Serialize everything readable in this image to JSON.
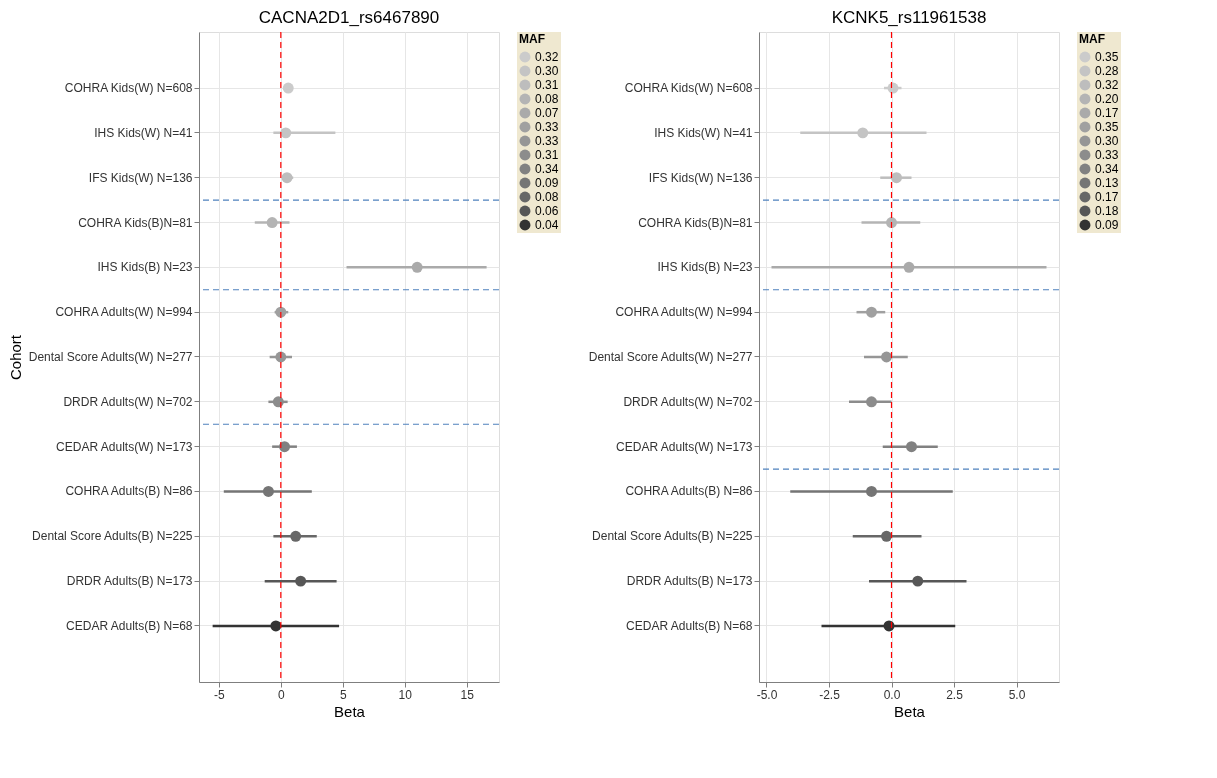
{
  "chart_data": [
    {
      "type": "scatter",
      "orientation": "horizontal",
      "title": "CACNA2D1_rs6467890",
      "xlabel": "Beta",
      "ylabel": "Cohort",
      "legend_title": "MAF",
      "legend": "right",
      "grid": true,
      "marker": "circle",
      "categories": [
        "COHRA Kids(W) N=608",
        "IHS Kids(W) N=41",
        "IFS Kids(W) N=136",
        "COHRA Kids(B)N=81",
        "IHS Kids(B) N=23",
        "COHRA Adults(W) N=994",
        "Dental Score Adults(W) N=277",
        "DRDR Adults(W) N=702",
        "CEDAR Adults(W) N=173",
        "COHRA Adults(B) N=86",
        "Dental Score Adults(B) N=225",
        "DRDR Adults(B) N=173",
        "CEDAR Adults(B) N=68"
      ],
      "xlim": [
        -6.6,
        17.6
      ],
      "xticks": [
        -5,
        0,
        5,
        10,
        15
      ],
      "series": [
        {
          "name": "0.32",
          "color": "#cbcbcb",
          "values": [
            0.6,
            null,
            null,
            null,
            null,
            null,
            null,
            null,
            null,
            null,
            null,
            null,
            null
          ],
          "errors": [
            [
              0.4,
              0.8
            ],
            null,
            null,
            null,
            null,
            null,
            null,
            null,
            null,
            null,
            null,
            null,
            null
          ]
        },
        {
          "name": "0.30",
          "color": "#c4c4c4",
          "values": [
            null,
            0.4,
            null,
            null,
            null,
            null,
            null,
            null,
            null,
            null,
            null,
            null,
            null
          ],
          "errors": [
            null,
            [
              -0.6,
              4.4
            ],
            null,
            null,
            null,
            null,
            null,
            null,
            null,
            null,
            null,
            null,
            null
          ]
        },
        {
          "name": "0.31",
          "color": "#bdbdbd",
          "values": [
            null,
            null,
            0.5,
            null,
            null,
            null,
            null,
            null,
            null,
            null,
            null,
            null,
            null
          ],
          "errors": [
            null,
            null,
            [
              0.15,
              1.0
            ],
            null,
            null,
            null,
            null,
            null,
            null,
            null,
            null,
            null,
            null
          ]
        },
        {
          "name": "0.08",
          "color": "#b4b4b4",
          "values": [
            null,
            null,
            null,
            -0.7,
            null,
            null,
            null,
            null,
            null,
            null,
            null,
            null,
            null
          ],
          "errors": [
            null,
            null,
            null,
            [
              -2.1,
              0.7
            ],
            null,
            null,
            null,
            null,
            null,
            null,
            null,
            null,
            null
          ]
        },
        {
          "name": "0.07",
          "color": "#aaaaaa",
          "values": [
            null,
            null,
            null,
            null,
            11.0,
            null,
            null,
            null,
            null,
            null,
            null,
            null,
            null
          ],
          "errors": [
            null,
            null,
            null,
            null,
            [
              5.3,
              16.6
            ],
            null,
            null,
            null,
            null,
            null,
            null,
            null,
            null
          ]
        },
        {
          "name": "0.33",
          "color": "#a0a0a0",
          "values": [
            null,
            null,
            null,
            null,
            null,
            0.0,
            null,
            null,
            null,
            null,
            null,
            null,
            null
          ],
          "errors": [
            null,
            null,
            null,
            null,
            null,
            [
              -0.5,
              0.6
            ],
            null,
            null,
            null,
            null,
            null,
            null,
            null
          ]
        },
        {
          "name": "0.33",
          "color": "#969696",
          "values": [
            null,
            null,
            null,
            null,
            null,
            null,
            0.0,
            null,
            null,
            null,
            null,
            null,
            null
          ],
          "errors": [
            null,
            null,
            null,
            null,
            null,
            null,
            [
              -0.9,
              0.9
            ],
            null,
            null,
            null,
            null,
            null,
            null
          ]
        },
        {
          "name": "0.31",
          "color": "#8c8c8c",
          "values": [
            null,
            null,
            null,
            null,
            null,
            null,
            null,
            -0.2,
            null,
            null,
            null,
            null,
            null
          ],
          "errors": [
            null,
            null,
            null,
            null,
            null,
            null,
            null,
            [
              -1.0,
              0.55
            ],
            null,
            null,
            null,
            null,
            null
          ]
        },
        {
          "name": "0.34",
          "color": "#818181",
          "values": [
            null,
            null,
            null,
            null,
            null,
            null,
            null,
            null,
            0.3,
            null,
            null,
            null,
            null
          ],
          "errors": [
            null,
            null,
            null,
            null,
            null,
            null,
            null,
            null,
            [
              -0.7,
              1.3
            ],
            null,
            null,
            null,
            null
          ]
        },
        {
          "name": "0.09",
          "color": "#757575",
          "values": [
            null,
            null,
            null,
            null,
            null,
            null,
            null,
            null,
            null,
            -1.0,
            null,
            null,
            null
          ],
          "errors": [
            null,
            null,
            null,
            null,
            null,
            null,
            null,
            null,
            null,
            [
              -4.6,
              2.5
            ],
            null,
            null,
            null
          ]
        },
        {
          "name": "0.08",
          "color": "#676767",
          "values": [
            null,
            null,
            null,
            null,
            null,
            null,
            null,
            null,
            null,
            null,
            1.2,
            null,
            null
          ],
          "errors": [
            null,
            null,
            null,
            null,
            null,
            null,
            null,
            null,
            null,
            null,
            [
              -0.6,
              2.9
            ],
            null,
            null
          ]
        },
        {
          "name": "0.06",
          "color": "#575757",
          "values": [
            null,
            null,
            null,
            null,
            null,
            null,
            null,
            null,
            null,
            null,
            null,
            1.6,
            null
          ],
          "errors": [
            null,
            null,
            null,
            null,
            null,
            null,
            null,
            null,
            null,
            null,
            null,
            [
              -1.3,
              4.5
            ],
            null
          ]
        },
        {
          "name": "0.04",
          "color": "#333333",
          "values": [
            null,
            null,
            null,
            null,
            null,
            null,
            null,
            null,
            null,
            null,
            null,
            null,
            -0.4
          ],
          "errors": [
            null,
            null,
            null,
            null,
            null,
            null,
            null,
            null,
            null,
            null,
            null,
            null,
            [
              -5.5,
              4.7
            ]
          ]
        }
      ],
      "ref_lines": [
        {
          "axis": "x",
          "value": 0,
          "color": "#ff0000",
          "line_style": "dashed"
        }
      ]
    },
    {
      "type": "scatter",
      "orientation": "horizontal",
      "title": "KCNK5_rs11961538",
      "xlabel": "Beta",
      "legend_title": "MAF",
      "legend": "right",
      "grid": true,
      "marker": "circle",
      "categories": [
        "COHRA Kids(W) N=608",
        "IHS Kids(W) N=41",
        "IFS Kids(W) N=136",
        "COHRA Kids(B)N=81",
        "IHS Kids(B) N=23",
        "COHRA Adults(W) N=994",
        "Dental Score Adults(W) N=277",
        "DRDR Adults(W) N=702",
        "CEDAR Adults(W) N=173",
        "COHRA Adults(B) N=86",
        "Dental Score Adults(B) N=225",
        "DRDR Adults(B) N=173",
        "CEDAR Adults(B) N=68"
      ],
      "xlim": [
        -5.3,
        6.7
      ],
      "xticks": [
        {
          "value": -5,
          "label": "-5.0"
        },
        -2.5,
        {
          "value": 0,
          "label": "0.0"
        },
        2.5,
        {
          "value": 5,
          "label": "5.0"
        }
      ],
      "series": [
        {
          "name": "0.35",
          "color": "#cbcbcb",
          "values": [
            0.06,
            null,
            null,
            null,
            null,
            null,
            null,
            null,
            null,
            null,
            null,
            null,
            null
          ],
          "errors": [
            [
              -0.3,
              0.4
            ],
            null,
            null,
            null,
            null,
            null,
            null,
            null,
            null,
            null,
            null,
            null,
            null
          ]
        },
        {
          "name": "0.28",
          "color": "#c4c4c4",
          "values": [
            null,
            -1.15,
            null,
            null,
            null,
            null,
            null,
            null,
            null,
            null,
            null,
            null,
            null
          ],
          "errors": [
            null,
            [
              -3.65,
              1.4
            ],
            null,
            null,
            null,
            null,
            null,
            null,
            null,
            null,
            null,
            null,
            null
          ]
        },
        {
          "name": "0.32",
          "color": "#bdbdbd",
          "values": [
            null,
            null,
            0.2,
            null,
            null,
            null,
            null,
            null,
            null,
            null,
            null,
            null,
            null
          ],
          "errors": [
            null,
            null,
            [
              -0.45,
              0.8
            ],
            null,
            null,
            null,
            null,
            null,
            null,
            null,
            null,
            null,
            null
          ]
        },
        {
          "name": "0.20",
          "color": "#b4b4b4",
          "values": [
            null,
            null,
            null,
            0.0,
            null,
            null,
            null,
            null,
            null,
            null,
            null,
            null,
            null
          ],
          "errors": [
            null,
            null,
            null,
            [
              -1.2,
              1.15
            ],
            null,
            null,
            null,
            null,
            null,
            null,
            null,
            null,
            null
          ]
        },
        {
          "name": "0.17",
          "color": "#aaaaaa",
          "values": [
            null,
            null,
            null,
            null,
            0.7,
            null,
            null,
            null,
            null,
            null,
            null,
            null,
            null
          ],
          "errors": [
            null,
            null,
            null,
            null,
            [
              -4.8,
              6.2
            ],
            null,
            null,
            null,
            null,
            null,
            null,
            null,
            null
          ]
        },
        {
          "name": "0.35",
          "color": "#a0a0a0",
          "values": [
            null,
            null,
            null,
            null,
            null,
            -0.8,
            null,
            null,
            null,
            null,
            null,
            null,
            null
          ],
          "errors": [
            null,
            null,
            null,
            null,
            null,
            [
              -1.4,
              -0.25
            ],
            null,
            null,
            null,
            null,
            null,
            null,
            null
          ]
        },
        {
          "name": "0.30",
          "color": "#969696",
          "values": [
            null,
            null,
            null,
            null,
            null,
            null,
            -0.2,
            null,
            null,
            null,
            null,
            null,
            null
          ],
          "errors": [
            null,
            null,
            null,
            null,
            null,
            null,
            [
              -1.1,
              0.65
            ],
            null,
            null,
            null,
            null,
            null,
            null
          ]
        },
        {
          "name": "0.33",
          "color": "#8c8c8c",
          "values": [
            null,
            null,
            null,
            null,
            null,
            null,
            null,
            -0.8,
            null,
            null,
            null,
            null,
            null
          ],
          "errors": [
            null,
            null,
            null,
            null,
            null,
            null,
            null,
            [
              -1.7,
              0.0
            ],
            null,
            null,
            null,
            null,
            null
          ]
        },
        {
          "name": "0.34",
          "color": "#818181",
          "values": [
            null,
            null,
            null,
            null,
            null,
            null,
            null,
            null,
            0.8,
            null,
            null,
            null,
            null
          ],
          "errors": [
            null,
            null,
            null,
            null,
            null,
            null,
            null,
            null,
            [
              -0.35,
              1.85
            ],
            null,
            null,
            null,
            null
          ]
        },
        {
          "name": "0.13",
          "color": "#757575",
          "values": [
            null,
            null,
            null,
            null,
            null,
            null,
            null,
            null,
            null,
            -0.8,
            null,
            null,
            null
          ],
          "errors": [
            null,
            null,
            null,
            null,
            null,
            null,
            null,
            null,
            null,
            [
              -4.05,
              2.45
            ],
            null,
            null,
            null
          ]
        },
        {
          "name": "0.17",
          "color": "#676767",
          "values": [
            null,
            null,
            null,
            null,
            null,
            null,
            null,
            null,
            null,
            null,
            -0.2,
            null,
            null
          ],
          "errors": [
            null,
            null,
            null,
            null,
            null,
            null,
            null,
            null,
            null,
            null,
            [
              -1.55,
              1.2
            ],
            null,
            null
          ]
        },
        {
          "name": "0.18",
          "color": "#575757",
          "values": [
            null,
            null,
            null,
            null,
            null,
            null,
            null,
            null,
            null,
            null,
            null,
            1.05,
            null
          ],
          "errors": [
            null,
            null,
            null,
            null,
            null,
            null,
            null,
            null,
            null,
            null,
            null,
            [
              -0.9,
              3.0
            ],
            null
          ]
        },
        {
          "name": "0.09",
          "color": "#333333",
          "values": [
            null,
            null,
            null,
            null,
            null,
            null,
            null,
            null,
            null,
            null,
            null,
            null,
            -0.1
          ],
          "errors": [
            null,
            null,
            null,
            null,
            null,
            null,
            null,
            null,
            null,
            null,
            null,
            null,
            [
              -2.8,
              2.55
            ]
          ]
        }
      ],
      "ref_lines": [
        {
          "axis": "x",
          "value": 0,
          "color": "#ff0000",
          "line_style": "dashed"
        }
      ]
    }
  ]
}
